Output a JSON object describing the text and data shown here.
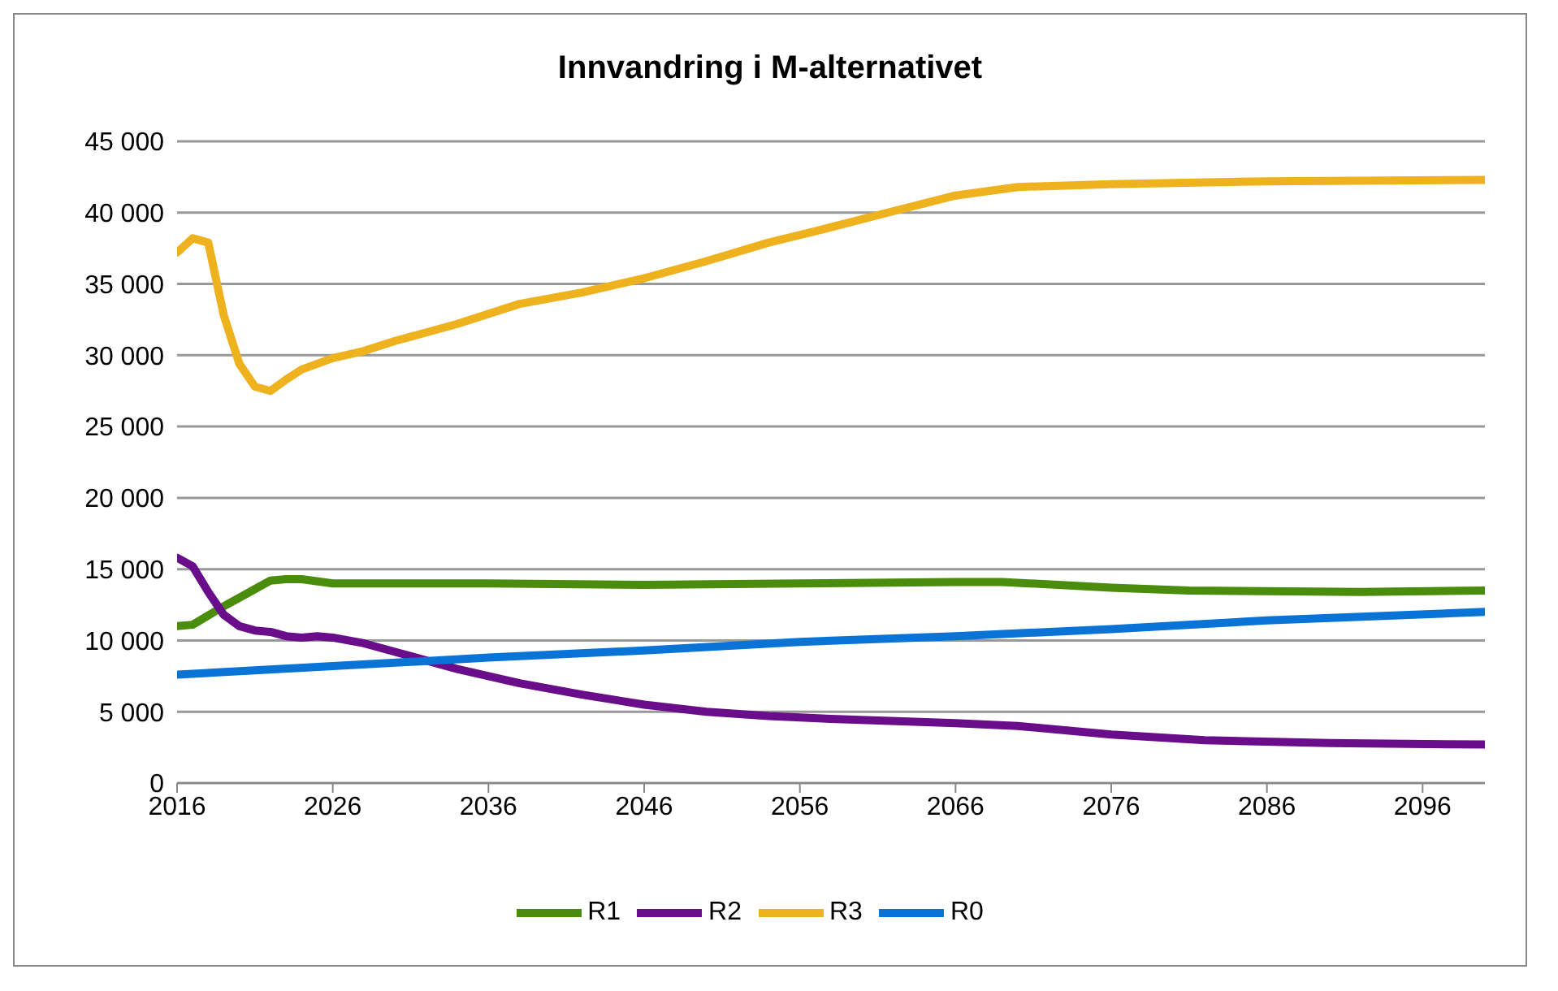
{
  "chart_data": {
    "type": "line",
    "title": "Innvandring i M-alternativet",
    "xlim": [
      2016,
      2100
    ],
    "xticks": [
      2016,
      2026,
      2036,
      2046,
      2056,
      2066,
      2076,
      2086,
      2096
    ],
    "ylim": [
      0,
      45000
    ],
    "yticks": [
      {
        "value": 0,
        "label": "0"
      },
      {
        "value": 5000,
        "label": "5 000"
      },
      {
        "value": 10000,
        "label": "10 000"
      },
      {
        "value": 15000,
        "label": "15 000"
      },
      {
        "value": 20000,
        "label": "20 000"
      },
      {
        "value": 25000,
        "label": "25 000"
      },
      {
        "value": 30000,
        "label": "30 000"
      },
      {
        "value": 35000,
        "label": "35 000"
      },
      {
        "value": 40000,
        "label": "40 000"
      },
      {
        "value": 45000,
        "label": "45 000"
      }
    ],
    "grid": "y",
    "legend": "bottom",
    "marker": "none",
    "line_style": "solid",
    "series": [
      {
        "name": "R1",
        "color": "#4a8c0c",
        "x": [
          2016,
          2017,
          2019,
          2021,
          2022,
          2023,
          2024,
          2026,
          2036,
          2046,
          2056,
          2066,
          2069,
          2076,
          2081,
          2092,
          2100
        ],
        "values": [
          11000,
          11100,
          12400,
          13600,
          14200,
          14300,
          14300,
          14000,
          14000,
          13900,
          14000,
          14100,
          14100,
          13700,
          13500,
          13400,
          13500
        ]
      },
      {
        "name": "R2",
        "color": "#6a0d8a",
        "x": [
          2016,
          2017,
          2018,
          2019,
          2020,
          2021,
          2022,
          2023,
          2024,
          2025,
          2026,
          2028,
          2030,
          2034,
          2038,
          2042,
          2046,
          2050,
          2054,
          2058,
          2066,
          2070,
          2076,
          2082,
          2090,
          2100
        ],
        "values": [
          15800,
          15200,
          13400,
          11800,
          11000,
          10700,
          10600,
          10300,
          10200,
          10300,
          10200,
          9800,
          9200,
          8000,
          7000,
          6200,
          5500,
          5000,
          4700,
          4500,
          4200,
          4000,
          3400,
          3000,
          2800,
          2700
        ]
      },
      {
        "name": "R3",
        "color": "#eeb21f",
        "x": [
          2016,
          2017,
          2018,
          2019,
          2020,
          2021,
          2022,
          2023,
          2024,
          2026,
          2028,
          2030,
          2034,
          2038,
          2042,
          2046,
          2050,
          2054,
          2057,
          2062,
          2066,
          2070,
          2076,
          2086,
          2100
        ],
        "values": [
          37200,
          38200,
          37900,
          32800,
          29400,
          27800,
          27500,
          28300,
          29000,
          29800,
          30300,
          31000,
          32200,
          33600,
          34400,
          35400,
          36600,
          37900,
          38700,
          40100,
          41200,
          41800,
          42000,
          42200,
          42300
        ]
      },
      {
        "name": "R0",
        "color": "#0a74d6",
        "x": [
          2016,
          2026,
          2036,
          2046,
          2056,
          2066,
          2076,
          2086,
          2100
        ],
        "values": [
          7600,
          8200,
          8800,
          9300,
          9900,
          10300,
          10800,
          11400,
          12000
        ]
      }
    ]
  }
}
